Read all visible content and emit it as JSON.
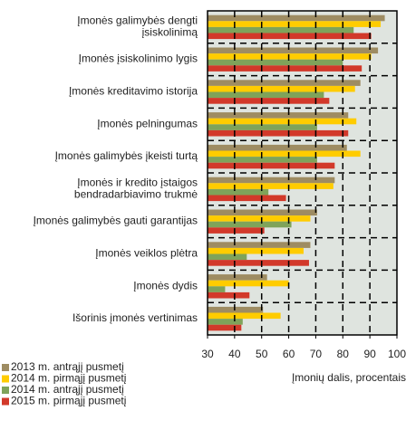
{
  "chart_data": {
    "type": "barh",
    "categories": [
      "Įmonės galimybės dengti\nįsiskolinimą",
      "Įmonės įsiskolinimo lygis",
      "Įmonės kreditavimo istorija",
      "Įmonės pelningumas",
      "Įmonės galimybės įkeisti turtą",
      "Įmonės ir kredito įstaigos\nbendradarbiavimo trukmė",
      "Įmonės galimybės gauti garantijas",
      "Įmonės veiklos plėtra",
      "Įmonės dydis",
      "Išorinis įmonės vertinimas"
    ],
    "series": [
      {
        "name": "2013 m. antrąjį pusmetį",
        "color": "#9e8c62",
        "values": [
          95.5,
          93,
          86.5,
          82,
          81.5,
          77,
          70.5,
          68,
          52,
          50.5
        ]
      },
      {
        "name": "2014 m. pirmąjį pusmetį",
        "color": "#ffcc00",
        "values": [
          94,
          90.5,
          84.5,
          85,
          86.5,
          76.5,
          68,
          65.5,
          60,
          57
        ]
      },
      {
        "name": "2014 m. antrąjį pusmetį",
        "color": "#7fa35a",
        "values": [
          84,
          80,
          73,
          70.5,
          70.5,
          52.5,
          61,
          44.5,
          36.5,
          43
        ]
      },
      {
        "name": "2015 m. pirmąjį pusmetį",
        "color": "#d2392a",
        "values": [
          90.5,
          87,
          75,
          82,
          77,
          59,
          51,
          67.5,
          45.5,
          42.5
        ]
      }
    ],
    "xlabel": "Įmonių dalis, procentais",
    "xlim": [
      30,
      100
    ],
    "xticks": [
      30,
      40,
      50,
      60,
      70,
      80,
      90,
      100
    ],
    "grid": true
  }
}
